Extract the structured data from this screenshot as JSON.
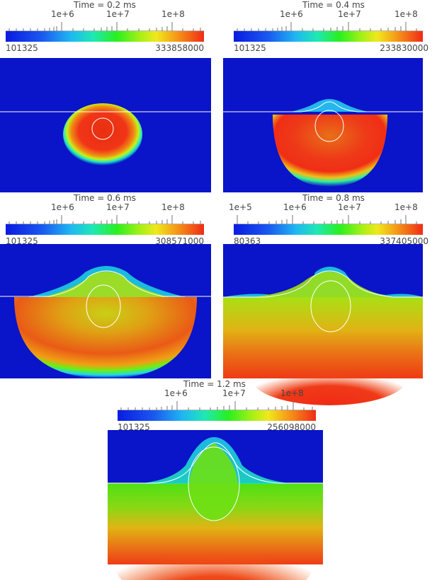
{
  "panels": [
    {
      "title": "Time = 0.2 ms",
      "ticks": [
        "1e+6",
        "1e+7",
        "1e+8"
      ],
      "min": "101325",
      "max": "333858000"
    },
    {
      "title": "Time = 0.4 ms",
      "ticks": [
        "1e+6",
        "1e+7",
        "1e+8"
      ],
      "min": "101325",
      "max": "233830000"
    },
    {
      "title": "Time = 0.6 ms",
      "ticks": [
        "1e+6",
        "1e+7",
        "1e+8"
      ],
      "min": "101325",
      "max": "308571000"
    },
    {
      "title": "Time = 0.8 ms",
      "ticks": [
        "1e+5",
        "1e+6",
        "1e+7",
        "1e+8"
      ],
      "min": "80363",
      "max": "337405000"
    },
    {
      "title": "Time = 1.2 ms",
      "ticks": [
        "1e+6",
        "1e+7",
        "1e+8"
      ],
      "min": "101325",
      "max": "256098000"
    }
  ],
  "colors": {
    "background_field": "#0a14c8",
    "contour": "#ffffff"
  }
}
